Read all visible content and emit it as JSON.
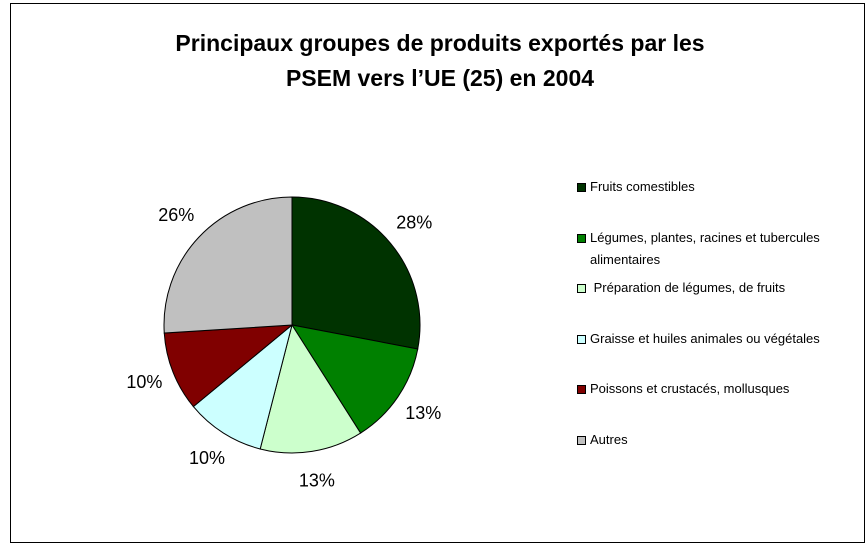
{
  "chart_data": {
    "type": "pie",
    "title": "Principaux groupes de produits exportés par les PSEM vers l’UE (25) en 2004",
    "categories": [
      "Fruits comestibles",
      "Légumes, plantes, racines et tubercules alimentaires",
      " Préparation de légumes, de fruits",
      "Graisse et huiles animales ou végétales",
      "Poissons et crustacés, mollusques",
      "Autres"
    ],
    "values": [
      28,
      13,
      13,
      10,
      10,
      26
    ],
    "value_labels": [
      "28%",
      "13%",
      "13%",
      "10%",
      "10%",
      "26%"
    ],
    "colors": [
      "#003300",
      "#008000",
      "#ccffcc",
      "#ccffff",
      "#800000",
      "#c0c0c0"
    ],
    "legend": "right"
  }
}
